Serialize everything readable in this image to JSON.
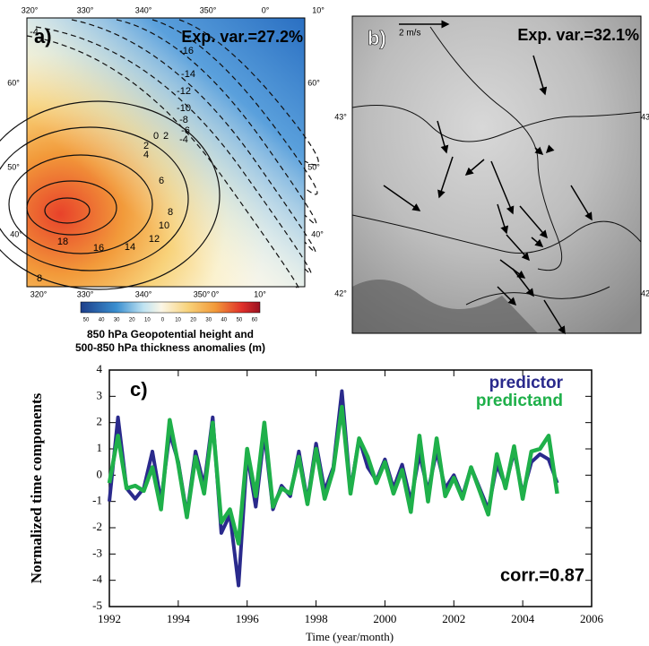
{
  "map_a": {
    "panel_label": "a)",
    "explained_variance": "Exp. var.=27.2%",
    "top_lon_labels": [
      "320°",
      "330°",
      "340°",
      "350°",
      "0°",
      "10°"
    ],
    "bottom_lon_labels": [
      "320°",
      "330°",
      "340°",
      "350°",
      "0°",
      "10°"
    ],
    "left_lat_labels": [
      "60°",
      "50°",
      "40°"
    ],
    "right_lat_labels": [
      "60°",
      "50°",
      "40°"
    ],
    "contour_labels": [
      "-4",
      "-16",
      "-14",
      "-12",
      "-10",
      "-8",
      "-6",
      "-4",
      "0",
      "2",
      "2",
      "4",
      "6",
      "8",
      "10",
      "12",
      "14",
      "16",
      "18",
      "8"
    ],
    "colorbar_labels": [
      50,
      40,
      30,
      20,
      10,
      0,
      10,
      20,
      30,
      40,
      50,
      60
    ],
    "caption": [
      "850 hPa Geopotential height and",
      "500-850 hPa thickness anomalies (m)"
    ]
  },
  "map_b": {
    "panel_label": "b)",
    "scale_label": "2 m/s",
    "explained_variance": "Exp. var.=32.1%",
    "left_lat_labels": [
      "43°",
      "42°"
    ],
    "right_lat_labels": [
      "43",
      "42"
    ]
  },
  "chart_data": {
    "type": "line",
    "panel_label": "c)",
    "annotation": "corr.=0.87",
    "x_label": "Time (year/month)",
    "y_label": "Normalized time components",
    "x": [
      1992,
      1992.25,
      1992.5,
      1992.75,
      1993,
      1993.25,
      1993.5,
      1993.75,
      1994,
      1994.25,
      1994.5,
      1994.75,
      1995,
      1995.25,
      1995.5,
      1995.75,
      1996,
      1996.25,
      1996.5,
      1996.75,
      1997,
      1997.25,
      1997.5,
      1997.75,
      1998,
      1998.25,
      1998.5,
      1998.75,
      1999,
      1999.25,
      1999.5,
      1999.75,
      2000,
      2000.25,
      2000.5,
      2000.75,
      2001,
      2001.25,
      2001.5,
      2001.75,
      2002,
      2002.25,
      2002.5,
      2002.75,
      2003,
      2003.25,
      2003.5,
      2003.75,
      2004,
      2004.25,
      2004.5,
      2004.75,
      2005
    ],
    "series": [
      {
        "name": "predictor",
        "color": "#2a2a8c",
        "values": [
          -1.0,
          2.2,
          -0.5,
          -0.9,
          -0.5,
          0.9,
          -1.0,
          1.6,
          0.5,
          -1.5,
          0.9,
          -0.4,
          2.2,
          -2.2,
          -1.5,
          -4.2,
          0.8,
          -1.2,
          1.6,
          -1.3,
          -0.4,
          -0.8,
          0.9,
          -1.0,
          1.2,
          -0.6,
          0.3,
          3.2,
          -0.6,
          1.4,
          0.3,
          -0.2,
          0.6,
          -0.5,
          0.4,
          -1.0,
          0.8,
          -0.6,
          0.9,
          -0.5,
          0.0,
          -0.8,
          0.3,
          -0.5,
          -1.3,
          0.4,
          -0.4,
          0.9,
          -0.7,
          0.5,
          0.8,
          0.6,
          -0.3
        ]
      },
      {
        "name": "predictand",
        "color": "#1fb04a",
        "values": [
          -0.3,
          1.5,
          -0.5,
          -0.4,
          -0.6,
          0.3,
          -1.3,
          2.1,
          0.4,
          -1.6,
          0.7,
          -0.7,
          2.0,
          -1.8,
          -1.3,
          -2.6,
          1.0,
          -0.8,
          2.0,
          -1.2,
          -0.5,
          -0.7,
          0.7,
          -1.1,
          1.0,
          -0.9,
          0.2,
          2.6,
          -0.7,
          1.4,
          0.7,
          -0.3,
          0.5,
          -0.7,
          0.2,
          -1.4,
          1.5,
          -1.0,
          1.4,
          -0.8,
          -0.1,
          -0.9,
          0.3,
          -0.6,
          -1.5,
          0.8,
          -0.5,
          1.1,
          -0.9,
          0.9,
          1.0,
          1.5,
          -0.7
        ]
      }
    ],
    "xlim": [
      1992,
      2006
    ],
    "xticks": [
      1992,
      1994,
      1996,
      1998,
      2000,
      2002,
      2004,
      2006
    ],
    "ylim": [
      -5,
      4
    ],
    "yticks": [
      -5,
      -4,
      -3,
      -2,
      -1,
      0,
      1,
      2,
      3,
      4
    ]
  }
}
